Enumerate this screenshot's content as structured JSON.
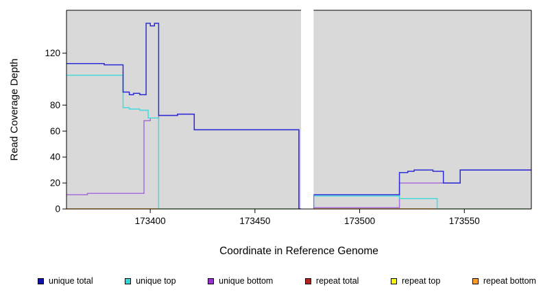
{
  "chart_data": {
    "type": "line",
    "step": true,
    "title": "",
    "xlabel": "Coordinate in Reference Genome",
    "ylabel": "Read Coverage Depth",
    "xlim": [
      173360,
      173582
    ],
    "ylim": [
      0,
      153
    ],
    "x_ticks": [
      173400,
      173450,
      173500,
      173550
    ],
    "y_ticks": [
      0,
      20,
      40,
      60,
      80,
      120
    ],
    "panel_bg": "#d9d9d9",
    "axis_color": "#000000",
    "gap_region": {
      "x_start": 173472,
      "x_end": 173478
    },
    "series": [
      {
        "name": "repeat total",
        "color": "#b22222",
        "points": [
          [
            173360,
            0
          ]
        ]
      },
      {
        "name": "repeat top",
        "color": "#f5f500",
        "points": [
          [
            173360,
            0
          ]
        ]
      },
      {
        "name": "repeat bottom",
        "color": "#ff9d26",
        "points": [
          [
            173360,
            0
          ]
        ]
      },
      {
        "name": "unique bottom",
        "color": "#a66dd8",
        "points": [
          [
            173360,
            11
          ],
          [
            173370,
            12
          ],
          [
            173397,
            68
          ],
          [
            173400,
            70
          ],
          [
            173404,
            72
          ],
          [
            173413,
            73
          ],
          [
            173421,
            61
          ],
          [
            173471,
            0
          ],
          [
            173478,
            1
          ],
          [
            173519,
            20
          ],
          [
            173548,
            30
          ]
        ]
      },
      {
        "name": "unique top",
        "color": "#45d9d9",
        "points": [
          [
            173360,
            103
          ],
          [
            173387,
            78
          ],
          [
            173390,
            77
          ],
          [
            173395,
            76
          ],
          [
            173399,
            70
          ],
          [
            173404,
            0
          ],
          [
            173478,
            10
          ],
          [
            173519,
            8
          ],
          [
            173537,
            0
          ]
        ]
      },
      {
        "name": "unique total",
        "color": "#2b2bd5",
        "points": [
          [
            173360,
            112
          ],
          [
            173378,
            111
          ],
          [
            173387,
            90
          ],
          [
            173390,
            88
          ],
          [
            173392,
            89
          ],
          [
            173395,
            88
          ],
          [
            173398,
            143
          ],
          [
            173400,
            141
          ],
          [
            173402,
            143
          ],
          [
            173404,
            72
          ],
          [
            173413,
            73
          ],
          [
            173421,
            61
          ],
          [
            173471,
            0
          ],
          [
            173478,
            11
          ],
          [
            173519,
            28
          ],
          [
            173523,
            29
          ],
          [
            173526,
            30
          ],
          [
            173535,
            29
          ],
          [
            173540,
            20
          ],
          [
            173548,
            30
          ]
        ]
      }
    ],
    "legend": [
      {
        "label": "unique total",
        "color": "#1111ad"
      },
      {
        "label": "unique top",
        "color": "#2fd9d9"
      },
      {
        "label": "unique bottom",
        "color": "#9b30d0"
      },
      {
        "label": "repeat total",
        "color": "#b22222"
      },
      {
        "label": "repeat top",
        "color": "#f5f500"
      },
      {
        "label": "repeat bottom",
        "color": "#ff9d26"
      }
    ]
  }
}
